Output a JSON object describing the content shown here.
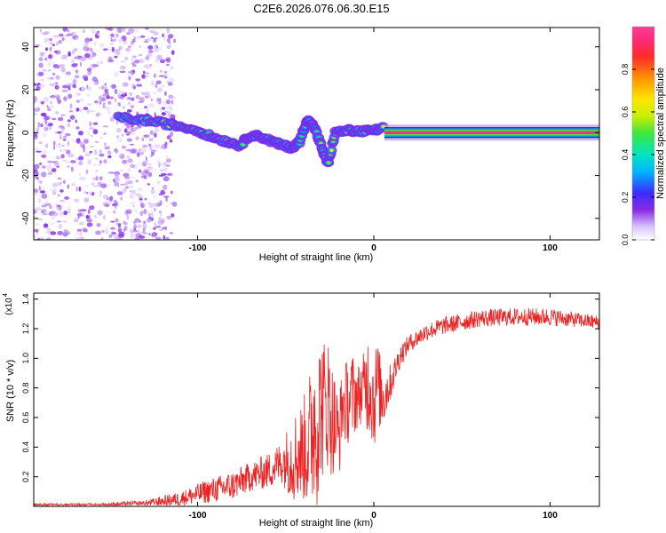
{
  "figure_title": "C2E6.2026.076.06.30.E15",
  "colors": {
    "spectrum_blob": "#7a2ee8",
    "snr_line": "#ee2222",
    "axis": "#000000"
  },
  "chart_data": [
    {
      "type": "heatmap",
      "title": "",
      "xlabel": "Height of straight line (km)",
      "ylabel": "Frequency (Hz)",
      "xlim": [
        -193,
        128
      ],
      "ylim": [
        -50,
        49
      ],
      "x_ticks": [
        -100,
        0,
        100
      ],
      "x_tick_labels": [
        "-100",
        "0",
        "100"
      ],
      "y_ticks": [
        -40,
        -20,
        0,
        20,
        40
      ],
      "y_tick_labels": [
        "-40",
        "-20",
        "0",
        "20",
        "40"
      ],
      "colorbar": {
        "label": "Normalized spectral amplitude",
        "range": [
          0,
          1
        ],
        "ticks": [
          0.0,
          0.2,
          0.4,
          0.6,
          0.8
        ],
        "tick_labels": [
          "0.0",
          "0.2",
          "0.4",
          "0.6",
          "0.8"
        ]
      },
      "noise_region": {
        "x_from": -193,
        "x_to": -113,
        "amplitude": 0.12
      },
      "ridge": [
        {
          "x": -145,
          "f": 7,
          "a": 0.3
        },
        {
          "x": -132,
          "f": 6,
          "a": 0.42
        },
        {
          "x": -120,
          "f": 4.5,
          "a": 0.45
        },
        {
          "x": -110,
          "f": 3,
          "a": 0.55
        },
        {
          "x": -100,
          "f": 1,
          "a": 0.55
        },
        {
          "x": -92,
          "f": -2,
          "a": 0.5
        },
        {
          "x": -84,
          "f": -4,
          "a": 0.5
        },
        {
          "x": -76,
          "f": -6,
          "a": 0.48
        },
        {
          "x": -70,
          "f": -1,
          "a": 0.45
        },
        {
          "x": -64,
          "f": -2,
          "a": 0.45
        },
        {
          "x": -58,
          "f": -4,
          "a": 0.48
        },
        {
          "x": -52,
          "f": -6,
          "a": 0.45
        },
        {
          "x": -46,
          "f": -7,
          "a": 0.42
        },
        {
          "x": -42,
          "f": -4,
          "a": 0.4
        },
        {
          "x": -38,
          "f": 6,
          "a": 0.38
        },
        {
          "x": -34,
          "f": 3,
          "a": 0.4
        },
        {
          "x": -30,
          "f": -6,
          "a": 0.42
        },
        {
          "x": -26,
          "f": -15,
          "a": 0.45
        },
        {
          "x": -22,
          "f": 0,
          "a": 0.6
        },
        {
          "x": -15,
          "f": 1,
          "a": 0.58
        },
        {
          "x": -8,
          "f": 0.5,
          "a": 0.6
        },
        {
          "x": 0,
          "f": 1,
          "a": 0.62
        },
        {
          "x": 6,
          "f": 2,
          "a": 0.55
        }
      ],
      "tone": {
        "x_from": 6,
        "x_to": 128,
        "f": 0,
        "amplitude": 0.95
      }
    },
    {
      "type": "line",
      "title": "",
      "xlabel": "Height of straight line (km)",
      "ylabel": "SNR (10 * v/v)",
      "y_scale_label": "(x10",
      "y_scale_exponent": "4",
      "xlim": [
        -193,
        128
      ],
      "ylim": [
        0,
        1.44
      ],
      "x_ticks": [
        -100,
        0,
        100
      ],
      "x_tick_labels": [
        "-100",
        "0",
        "100"
      ],
      "y_ticks": [
        0.2,
        0.4,
        0.6,
        0.8,
        1.0,
        1.2,
        1.4
      ],
      "y_tick_labels": [
        "0.2",
        "0.4",
        "0.6",
        "0.8",
        "1.0",
        "1.2",
        "1.4"
      ],
      "series": [
        {
          "name": "SNR",
          "x": [
            -193,
            -160,
            -130,
            -110,
            -95,
            -80,
            -70,
            -60,
            -52,
            -46,
            -40,
            -36,
            -34,
            -32,
            -30,
            -28,
            -26,
            -24,
            -22,
            -20,
            -18,
            -16,
            -14,
            -12,
            -10,
            -8,
            -6,
            -4,
            -2,
            0,
            2,
            4,
            6,
            8,
            10,
            12,
            15,
            20,
            30,
            40,
            60,
            80,
            100,
            115,
            128
          ],
          "values": [
            0.01,
            0.01,
            0.02,
            0.05,
            0.1,
            0.14,
            0.2,
            0.24,
            0.3,
            0.33,
            0.38,
            0.45,
            0.6,
            0.55,
            0.7,
            0.65,
            0.72,
            0.6,
            0.55,
            0.45,
            0.68,
            0.7,
            0.72,
            0.74,
            0.75,
            0.76,
            0.78,
            0.85,
            0.82,
            0.7,
            0.85,
            0.75,
            0.75,
            0.8,
            0.85,
            0.92,
            1.02,
            1.1,
            1.18,
            1.22,
            1.27,
            1.28,
            1.28,
            1.26,
            1.24
          ],
          "noise_amplitude": [
            0.01,
            0.01,
            0.02,
            0.05,
            0.08,
            0.1,
            0.1,
            0.12,
            0.15,
            0.3,
            0.35,
            0.5,
            0.6,
            0.55,
            0.5,
            0.5,
            0.45,
            0.4,
            0.35,
            0.3,
            0.25,
            0.28,
            0.3,
            0.3,
            0.25,
            0.2,
            0.25,
            0.35,
            0.35,
            0.35,
            0.3,
            0.25,
            0.2,
            0.15,
            0.12,
            0.1,
            0.08,
            0.06,
            0.06,
            0.06,
            0.06,
            0.06,
            0.06,
            0.05,
            0.05
          ]
        }
      ]
    }
  ]
}
